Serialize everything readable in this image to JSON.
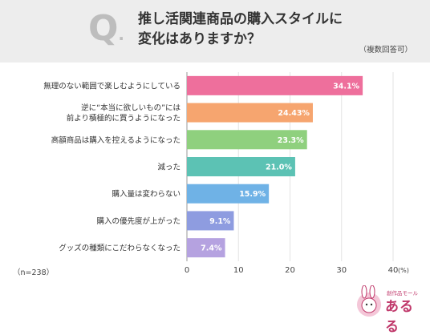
{
  "header": {
    "q_letter": "Q",
    "q_dot": ".",
    "title_line1": "推し活関連商品の購入スタイルに",
    "title_line2": "変化はありますか？",
    "note": "（複数回答可）"
  },
  "sample": "（n=238）",
  "logo": {
    "sub": "創作品モール",
    "main": "あるる"
  },
  "chart_data": {
    "type": "bar",
    "orientation": "horizontal",
    "categories": [
      [
        "無理のない範囲で楽しむようにしている"
      ],
      [
        "逆に“本当に欲しいもの”には",
        "前より積極的に買うようになった"
      ],
      [
        "高額商品は購入を控えるようになった"
      ],
      [
        "減った"
      ],
      [
        "購入量は変わらない"
      ],
      [
        "購入の優先度が上がった"
      ],
      [
        "グッズの種類にこだわらなくなった"
      ]
    ],
    "values": [
      34.1,
      24.43,
      23.3,
      21.0,
      15.9,
      9.1,
      7.4
    ],
    "value_labels": [
      "34.1%",
      "24.43%",
      "23.3%",
      "21.0%",
      "15.9%",
      "9.1%",
      "7.4%"
    ],
    "colors": [
      "#ee6f9c",
      "#f6a56f",
      "#8fd07e",
      "#5cc2b4",
      "#6fb2e6",
      "#8e9ce0",
      "#b5a2e0"
    ],
    "xlim": [
      0,
      40
    ],
    "xticks": [
      "0",
      "10",
      "20",
      "30",
      "40"
    ],
    "x_unit": "(%)",
    "grid": true
  }
}
